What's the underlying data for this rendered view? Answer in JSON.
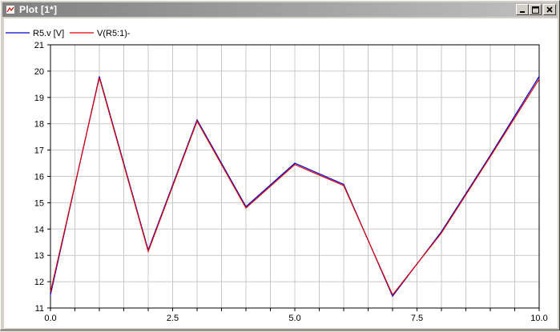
{
  "window": {
    "title": "Plot [1*]",
    "controls": {
      "minimize": "minimize-icon",
      "maximize": "maximize-icon",
      "close": "close-icon"
    }
  },
  "chart_data": {
    "type": "line",
    "x": [
      0,
      1,
      2,
      3,
      4,
      5,
      6,
      7,
      8,
      9,
      10
    ],
    "xlim": [
      0,
      10
    ],
    "ylim": [
      11,
      21
    ],
    "x_ticks": [
      "0.0",
      "2.5",
      "5.0",
      "7.5",
      "10.0"
    ],
    "y_ticks": [
      "11",
      "12",
      "13",
      "14",
      "15",
      "16",
      "17",
      "18",
      "19",
      "20",
      "21"
    ],
    "grid": true,
    "legend_position": "top-left",
    "series": [
      {
        "name": "R5.v [V]",
        "color": "#0000cc",
        "values": [
          11.5,
          19.8,
          13.2,
          18.15,
          14.85,
          16.5,
          15.7,
          11.45,
          13.9,
          16.8,
          19.8
        ]
      },
      {
        "name": "V(R5:1)-",
        "color": "#e00000",
        "values": [
          11.6,
          19.75,
          13.15,
          18.1,
          14.8,
          16.45,
          15.65,
          11.5,
          13.85,
          16.75,
          19.7
        ]
      }
    ]
  }
}
